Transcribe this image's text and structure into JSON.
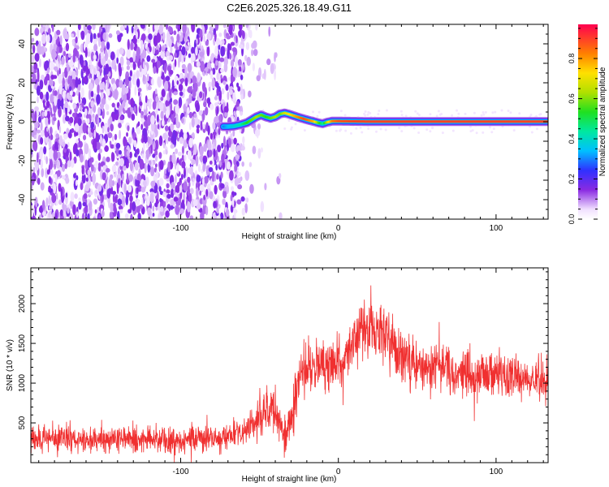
{
  "title": "C2E6.2025.326.18.49.G11",
  "chart_data": [
    {
      "type": "heatmap",
      "xlabel": "Height of straight line (km)",
      "ylabel": "Frequency (Hz)",
      "xlim": [
        -195,
        133
      ],
      "ylim": [
        -50,
        50
      ],
      "x_ticks": [
        -100,
        0,
        100
      ],
      "y_ticks": [
        -40,
        -20,
        0,
        20,
        40
      ],
      "colorbar": {
        "label": "Normalized spectral amplitude",
        "range": [
          0,
          0.97
        ],
        "ticks": [
          0.0,
          0.2,
          0.4,
          0.6,
          0.8
        ],
        "tick_labels": [
          "0.0",
          "0.2",
          "0.4",
          "0.6",
          "0.8"
        ]
      },
      "noise_region": {
        "x_from": -195,
        "x_to": -60,
        "fade_to": -35
      },
      "carrier_trace": {
        "x": [
          -73,
          -70,
          -66,
          -62,
          -58,
          -55,
          -52,
          -49,
          -46,
          -43,
          -40,
          -37,
          -34,
          -31,
          -28,
          -25,
          -22,
          -19,
          -16,
          -13,
          -10,
          -7,
          -4,
          0,
          10,
          20,
          40,
          60,
          80,
          100,
          120,
          133
        ],
        "freq": [
          -2.5,
          -2.5,
          -2.2,
          -1.5,
          -0.5,
          1.0,
          2.5,
          3.5,
          2.5,
          1.8,
          2.5,
          4.0,
          4.5,
          3.8,
          3.0,
          2.2,
          1.5,
          0.8,
          0.2,
          -0.5,
          -1.0,
          -0.2,
          0.3,
          0.3,
          0.2,
          0.1,
          0.1,
          0.1,
          0.1,
          0.1,
          0.1,
          0.1
        ],
        "amplitude": [
          0.3,
          0.35,
          0.4,
          0.45,
          0.55,
          0.6,
          0.65,
          0.6,
          0.55,
          0.6,
          0.65,
          0.6,
          0.7,
          0.75,
          0.8,
          0.85,
          0.9,
          0.85,
          0.8,
          0.6,
          0.45,
          0.7,
          0.85,
          0.9,
          0.92,
          0.92,
          0.92,
          0.92,
          0.92,
          0.92,
          0.92,
          0.92
        ]
      }
    },
    {
      "type": "line",
      "xlabel": "Height of straight line (km)",
      "ylabel": "SNR (10 * v/v)",
      "xlim": [
        -195,
        133
      ],
      "ylim": [
        0,
        2450
      ],
      "x_ticks": [
        -100,
        0,
        100
      ],
      "y_ticks": [
        500,
        1000,
        1500,
        2000
      ],
      "color": "#f03030",
      "envelope": {
        "x": [
          -195,
          -180,
          -160,
          -140,
          -120,
          -100,
          -80,
          -70,
          -62,
          -55,
          -50,
          -45,
          -40,
          -36,
          -33,
          -30,
          -27,
          -24,
          -21,
          -18,
          -15,
          -10,
          -5,
          0,
          5,
          10,
          15,
          20,
          25,
          30,
          35,
          40,
          50,
          60,
          70,
          80,
          90,
          100,
          110,
          120,
          133
        ],
        "mean": [
          300,
          310,
          320,
          300,
          290,
          290,
          300,
          320,
          360,
          450,
          600,
          700,
          600,
          450,
          400,
          550,
          900,
          1150,
          1250,
          1200,
          1180,
          1180,
          1220,
          1300,
          1450,
          1550,
          1650,
          1700,
          1680,
          1550,
          1450,
          1350,
          1250,
          1200,
          1150,
          1120,
          1100,
          1100,
          1080,
          1050,
          1050
        ],
        "spread": [
          180,
          190,
          200,
          190,
          180,
          180,
          190,
          200,
          220,
          260,
          320,
          380,
          300,
          250,
          250,
          320,
          380,
          400,
          400,
          390,
          380,
          380,
          380,
          400,
          420,
          430,
          440,
          440,
          430,
          420,
          400,
          380,
          360,
          340,
          330,
          320,
          310,
          310,
          300,
          300,
          300
        ]
      }
    }
  ]
}
